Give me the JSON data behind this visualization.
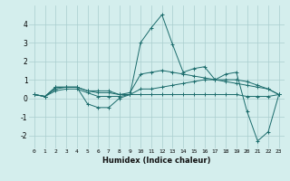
{
  "xlabel": "Humidex (Indice chaleur)",
  "xlim": [
    -0.5,
    23.5
  ],
  "ylim": [
    -2.7,
    5.0
  ],
  "yticks": [
    -2,
    -1,
    0,
    1,
    2,
    3,
    4
  ],
  "xticks": [
    0,
    1,
    2,
    3,
    4,
    5,
    6,
    7,
    8,
    9,
    10,
    11,
    12,
    13,
    14,
    15,
    16,
    17,
    18,
    19,
    20,
    21,
    22,
    23
  ],
  "bg_color": "#d4eeed",
  "grid_color": "#aacece",
  "line_color": "#1a6b6b",
  "series": [
    [
      0.2,
      0.1,
      0.6,
      0.6,
      0.6,
      -0.3,
      -0.5,
      -0.5,
      0.0,
      0.2,
      3.0,
      3.8,
      4.5,
      2.9,
      1.4,
      1.6,
      1.7,
      1.0,
      1.3,
      1.4,
      -0.7,
      -2.3,
      -1.8,
      0.2
    ],
    [
      0.2,
      0.1,
      0.6,
      0.6,
      0.6,
      0.4,
      0.4,
      0.4,
      0.2,
      0.3,
      1.3,
      1.4,
      1.5,
      1.4,
      1.3,
      1.2,
      1.1,
      1.0,
      0.9,
      0.8,
      0.7,
      0.6,
      0.5,
      0.2
    ],
    [
      0.2,
      0.1,
      0.5,
      0.6,
      0.6,
      0.4,
      0.3,
      0.3,
      0.2,
      0.2,
      0.5,
      0.5,
      0.6,
      0.7,
      0.8,
      0.9,
      1.0,
      1.0,
      1.0,
      1.0,
      0.9,
      0.7,
      0.5,
      0.2
    ],
    [
      0.2,
      0.1,
      0.4,
      0.5,
      0.5,
      0.3,
      0.1,
      0.1,
      0.1,
      0.2,
      0.2,
      0.2,
      0.2,
      0.2,
      0.2,
      0.2,
      0.2,
      0.2,
      0.2,
      0.2,
      0.1,
      0.1,
      0.1,
      0.2
    ]
  ]
}
